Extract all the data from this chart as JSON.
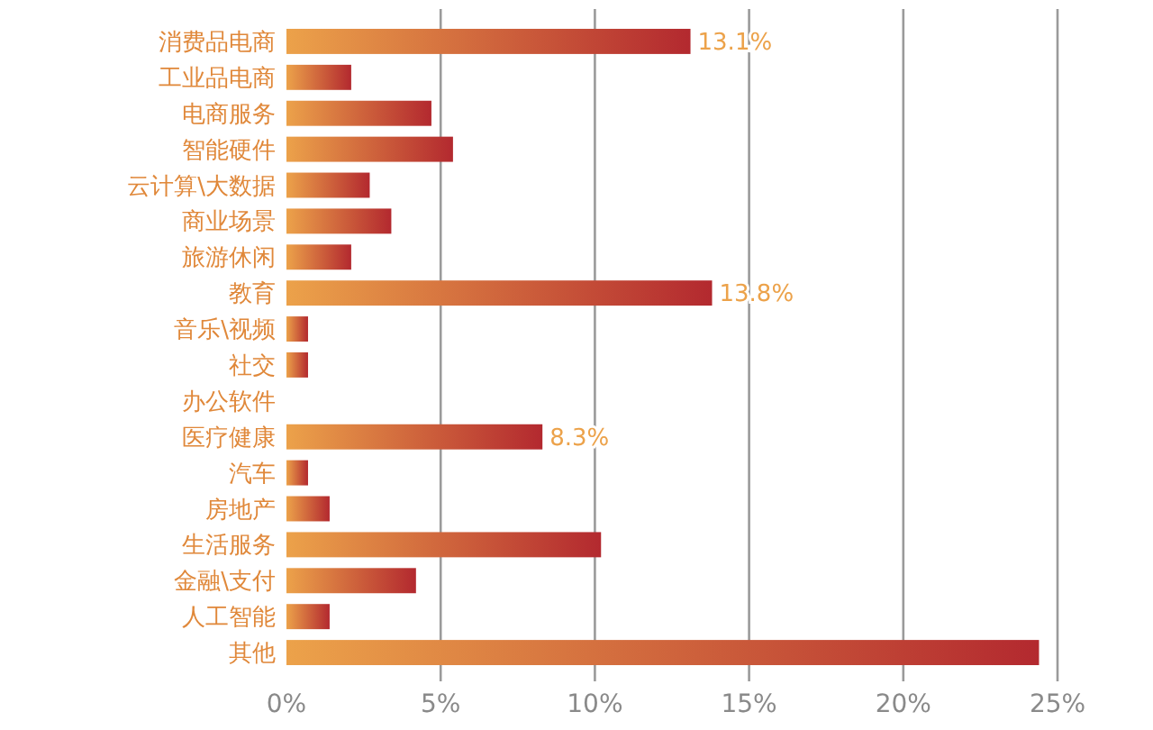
{
  "chart_data": {
    "type": "bar",
    "orientation": "horizontal",
    "categories": [
      "消费品电商",
      "工业品电商",
      "电商服务",
      "智能硬件",
      "云计算\\大数据",
      "商业场景",
      "旅游休闲",
      "教育",
      "音乐\\视频",
      "社交",
      "办公软件",
      "医疗健康",
      "汽车",
      "房地产",
      "生活服务",
      "金融\\支付",
      "人工智能",
      "其他"
    ],
    "values": [
      13.1,
      2.1,
      4.7,
      5.4,
      2.7,
      3.4,
      2.1,
      13.8,
      0.7,
      0.7,
      0,
      8.3,
      0.7,
      1.4,
      10.2,
      4.2,
      1.4,
      24.4
    ],
    "value_labels": [
      "13.1%",
      null,
      null,
      null,
      null,
      null,
      null,
      "13.8%",
      null,
      null,
      null,
      "8.3%",
      null,
      null,
      null,
      null,
      null,
      null
    ],
    "color": "#b3292f",
    "xlim": [
      0,
      25
    ],
    "xticks": [
      {
        "value": 0,
        "label": "0%"
      },
      {
        "value": 5,
        "label": "5%"
      },
      {
        "value": 10,
        "label": "10%"
      },
      {
        "value": 15,
        "label": "15%"
      },
      {
        "value": 20,
        "label": "20%"
      },
      {
        "value": 25,
        "label": "25%"
      }
    ],
    "grid": "x"
  }
}
